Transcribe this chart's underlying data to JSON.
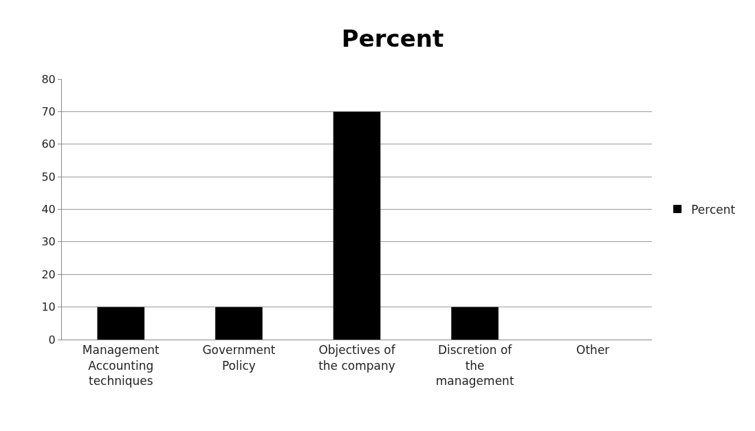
{
  "chart_data": {
    "type": "bar",
    "title": "Percent",
    "categories": [
      "Management Accounting techniques",
      "Government Policy",
      "Objectives of the company",
      "Discretion of the management",
      "Other"
    ],
    "series": [
      {
        "name": "Percent",
        "color": "#000000",
        "values": [
          10,
          10,
          70,
          10,
          0
        ]
      }
    ],
    "ylim": [
      0,
      80
    ],
    "yticks": [
      0,
      10,
      20,
      30,
      40,
      50,
      60,
      70,
      80
    ],
    "grid": "y",
    "legend": "right"
  }
}
